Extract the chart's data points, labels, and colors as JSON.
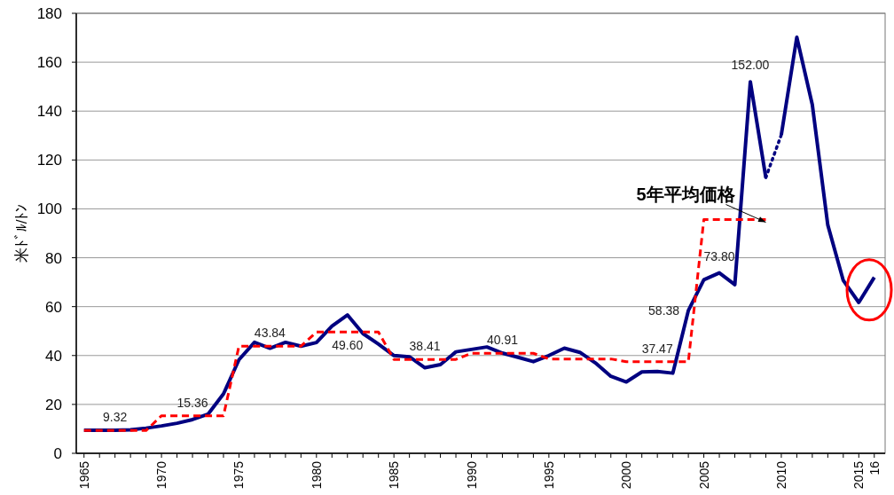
{
  "chart_data": {
    "type": "line",
    "ylabel": "米ﾄﾞﾙ/ﾄﾝ",
    "xlim": [
      1964.5,
      2016.7
    ],
    "ylim": [
      0,
      180
    ],
    "yticks": [
      0,
      20,
      40,
      60,
      80,
      100,
      120,
      140,
      160,
      180
    ],
    "xticks": [
      1965,
      {
        "value": 1966,
        "label": null
      },
      {
        "value": 1967,
        "label": null
      },
      {
        "value": 1968,
        "label": null
      },
      {
        "value": 1969,
        "label": null
      },
      1970,
      {
        "value": 1971,
        "label": null
      },
      {
        "value": 1972,
        "label": null
      },
      {
        "value": 1973,
        "label": null
      },
      {
        "value": 1974,
        "label": null
      },
      1975,
      {
        "value": 1976,
        "label": null
      },
      {
        "value": 1977,
        "label": null
      },
      {
        "value": 1978,
        "label": null
      },
      {
        "value": 1979,
        "label": null
      },
      1980,
      {
        "value": 1981,
        "label": null
      },
      {
        "value": 1982,
        "label": null
      },
      {
        "value": 1983,
        "label": null
      },
      {
        "value": 1984,
        "label": null
      },
      1985,
      {
        "value": 1986,
        "label": null
      },
      {
        "value": 1987,
        "label": null
      },
      {
        "value": 1988,
        "label": null
      },
      {
        "value": 1989,
        "label": null
      },
      1990,
      {
        "value": 1991,
        "label": null
      },
      {
        "value": 1992,
        "label": null
      },
      {
        "value": 1993,
        "label": null
      },
      {
        "value": 1994,
        "label": null
      },
      1995,
      {
        "value": 1996,
        "label": null
      },
      {
        "value": 1997,
        "label": null
      },
      {
        "value": 1998,
        "label": null
      },
      {
        "value": 1999,
        "label": null
      },
      2000,
      {
        "value": 2001,
        "label": null
      },
      {
        "value": 2002,
        "label": null
      },
      {
        "value": 2003,
        "label": null
      },
      {
        "value": 2004,
        "label": null
      },
      2005,
      {
        "value": 2006,
        "label": null
      },
      {
        "value": 2007,
        "label": null
      },
      {
        "value": 2008,
        "label": null
      },
      {
        "value": 2009,
        "label": null
      },
      2010,
      {
        "value": 2011,
        "label": null
      },
      {
        "value": 2012,
        "label": null
      },
      {
        "value": 2013,
        "label": null
      },
      {
        "value": 2014,
        "label": null
      },
      2015,
      {
        "value": 2016,
        "label": "16"
      }
    ],
    "grid": "y",
    "marker": "none",
    "series": [
      {
        "color": "#000080",
        "line_style": "solid",
        "x": [
          1965,
          1966,
          1967,
          1968,
          1969,
          1970,
          1971,
          1972,
          1973,
          1974,
          1975,
          1976,
          1977,
          1978,
          1979,
          1980,
          1981,
          1982,
          1983,
          1984,
          1985,
          1986,
          1987,
          1988,
          1989,
          1990,
          1991,
          1992,
          1993,
          1994,
          1995,
          1996,
          1997,
          1998,
          1999,
          2000,
          2001,
          2002,
          2003,
          2004,
          2005,
          2006,
          2007,
          2008,
          2009
        ],
        "values": [
          9.4,
          9.4,
          9.4,
          9.6,
          10.3,
          11.2,
          12.3,
          13.8,
          16.0,
          24.3,
          38.3,
          45.4,
          43.0,
          45.4,
          43.8,
          45.3,
          52.0,
          56.6,
          49.0,
          44.7,
          40.0,
          39.5,
          35.0,
          36.3,
          41.5,
          42.5,
          43.5,
          41.0,
          39.3,
          37.5,
          40.0,
          43.0,
          41.3,
          37.0,
          31.5,
          29.2,
          33.3,
          33.5,
          32.8,
          58.38,
          71.0,
          73.8,
          69.0,
          152.0,
          112.8
        ],
        "value_labels": [
          null,
          null,
          null,
          null,
          null,
          null,
          null,
          null,
          null,
          null,
          null,
          null,
          null,
          null,
          null,
          null,
          null,
          null,
          null,
          null,
          null,
          null,
          null,
          null,
          null,
          null,
          null,
          null,
          null,
          null,
          null,
          null,
          null,
          null,
          null,
          null,
          null,
          null,
          null,
          "58.38",
          null,
          "73.80",
          null,
          "152.00",
          null
        ]
      },
      {
        "color": "#000080",
        "line_style": "dotted",
        "x": [
          2009,
          2010
        ],
        "values": [
          112.8,
          130.3
        ]
      },
      {
        "color": "#000080",
        "line_style": "solid",
        "x": [
          2010,
          2011,
          2012,
          2013,
          2014,
          2015,
          2016
        ],
        "values": [
          130.3,
          170.2,
          142.6,
          93.4,
          70.7,
          61.7,
          72.0
        ]
      },
      {
        "color": "#ff0000",
        "line_style": "dashed",
        "x": [
          1965,
          1966,
          1967,
          1968,
          1969,
          1970,
          1971,
          1972,
          1973,
          1974,
          1975,
          1976,
          1977,
          1978,
          1979,
          1980,
          1981,
          1982,
          1983,
          1984,
          1985,
          1986,
          1987,
          1988,
          1989,
          1990,
          1991,
          1992,
          1993,
          1994,
          1995,
          1996,
          1997,
          1998,
          1999,
          2000,
          2001,
          2002,
          2003,
          2004,
          2005,
          2006,
          2007,
          2008,
          2009
        ],
        "values": [
          9.32,
          9.32,
          9.32,
          9.32,
          9.32,
          15.36,
          15.36,
          15.36,
          15.36,
          15.36,
          43.84,
          43.84,
          43.84,
          43.84,
          43.84,
          49.6,
          49.6,
          49.6,
          49.6,
          49.6,
          38.41,
          38.41,
          38.41,
          38.41,
          38.41,
          40.91,
          40.91,
          40.91,
          40.91,
          40.91,
          38.6,
          38.6,
          38.6,
          38.6,
          38.6,
          37.47,
          37.47,
          37.47,
          37.47,
          37.47,
          95.6,
          95.6,
          95.6,
          95.6,
          95.6
        ],
        "value_labels": [
          null,
          null,
          "9.32",
          null,
          null,
          null,
          null,
          "15.36",
          null,
          null,
          null,
          null,
          "43.84",
          null,
          null,
          null,
          null,
          "49.60",
          null,
          null,
          null,
          null,
          "38.41",
          null,
          null,
          null,
          null,
          "40.91",
          null,
          null,
          null,
          null,
          null,
          null,
          null,
          null,
          null,
          "37.47",
          null,
          null,
          null,
          null,
          null,
          null,
          null
        ]
      }
    ],
    "annotations": [
      {
        "text": "5年平均価格",
        "x": 2009,
        "y": 95.6
      }
    ]
  }
}
